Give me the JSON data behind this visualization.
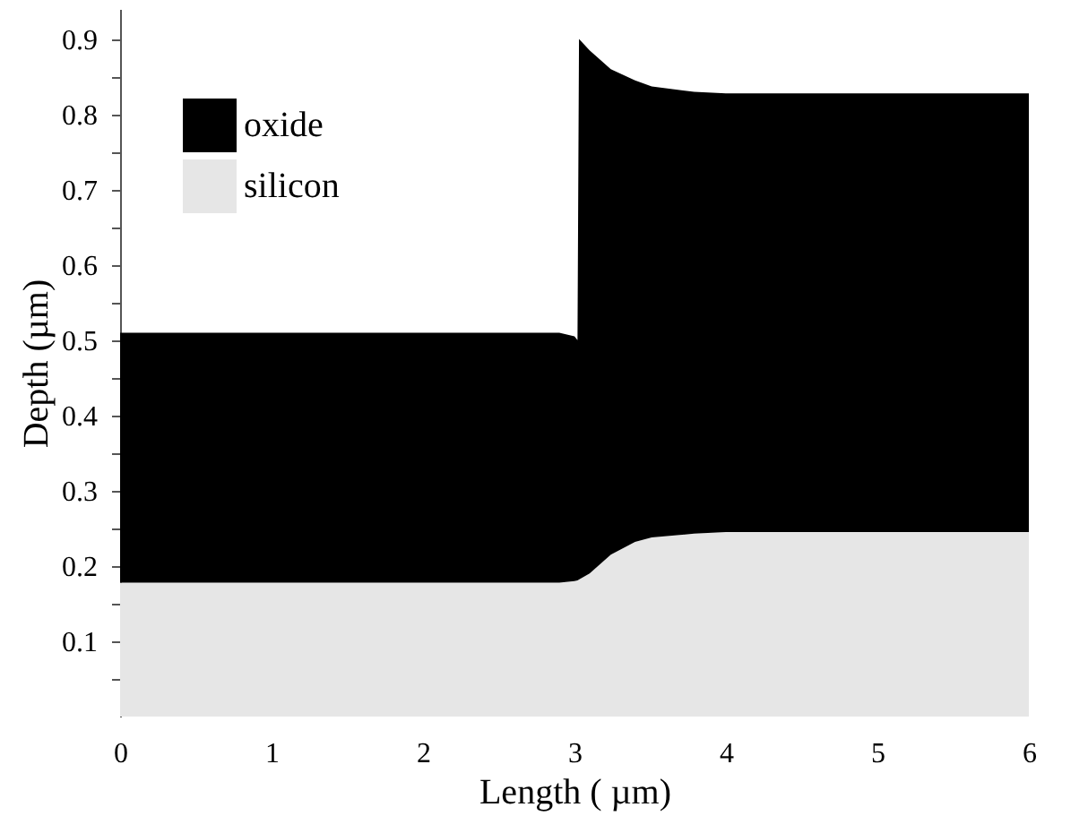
{
  "chart_data": {
    "type": "area",
    "stacked": true,
    "xlabel": "Length ( µm)",
    "ylabel": "Depth (µm)",
    "x": [
      0,
      2.9,
      3.0,
      3.02,
      3.03,
      3.1,
      3.24,
      3.4,
      3.51,
      3.79,
      4,
      6
    ],
    "series": [
      {
        "name": "silicon",
        "color": "#e6e6e6",
        "values": [
          0.178,
          0.178,
          0.18,
          0.181,
          0.182,
          0.19,
          0.215,
          0.232,
          0.238,
          0.243,
          0.245,
          0.245
        ]
      },
      {
        "name": "oxide",
        "color": "#000000",
        "values": [
          0.332,
          0.332,
          0.325,
          0.319,
          0.718,
          0.695,
          0.645,
          0.613,
          0.599,
          0.587,
          0.583,
          0.583
        ]
      }
    ],
    "xlim": [
      0,
      6
    ],
    "xticks": [
      0,
      1,
      2,
      3,
      4,
      5,
      6
    ],
    "ylim": [
      0,
      0.94
    ],
    "yticks": [
      {
        "value": 0.05,
        "label": null
      },
      0.1,
      {
        "value": 0.15,
        "label": null
      },
      0.2,
      {
        "value": 0.25,
        "label": null
      },
      0.3,
      {
        "value": 0.35,
        "label": null
      },
      0.4,
      {
        "value": 0.45,
        "label": null
      },
      0.5,
      {
        "value": 0.55,
        "label": null
      },
      0.6,
      {
        "value": 0.65,
        "label": null
      },
      0.7,
      {
        "value": 0.75,
        "label": null
      },
      0.8,
      {
        "value": 0.85,
        "label": null
      },
      0.9
    ],
    "tick_labels": true,
    "grid": false,
    "legend": "top left"
  }
}
